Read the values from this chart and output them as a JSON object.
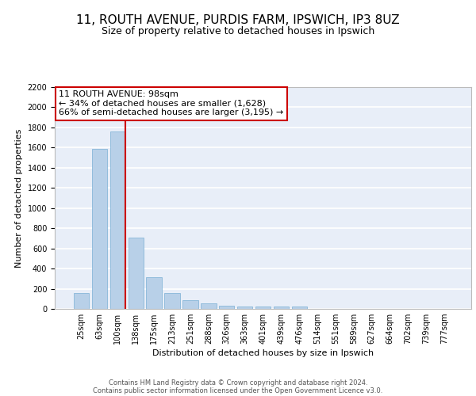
{
  "title1": "11, ROUTH AVENUE, PURDIS FARM, IPSWICH, IP3 8UZ",
  "title2": "Size of property relative to detached houses in Ipswich",
  "xlabel": "Distribution of detached houses by size in Ipswich",
  "ylabel": "Number of detached properties",
  "categories": [
    "25sqm",
    "63sqm",
    "100sqm",
    "138sqm",
    "175sqm",
    "213sqm",
    "251sqm",
    "288sqm",
    "326sqm",
    "363sqm",
    "401sqm",
    "439sqm",
    "476sqm",
    "514sqm",
    "551sqm",
    "589sqm",
    "627sqm",
    "664sqm",
    "702sqm",
    "739sqm",
    "777sqm"
  ],
  "values": [
    160,
    1590,
    1760,
    710,
    315,
    160,
    85,
    55,
    35,
    25,
    20,
    20,
    20,
    0,
    0,
    0,
    0,
    0,
    0,
    0,
    0
  ],
  "bar_color": "#b8d0e8",
  "bar_edge_color": "#7aafd4",
  "vline_color": "#cc0000",
  "annotation_text": "11 ROUTH AVENUE: 98sqm\n← 34% of detached houses are smaller (1,628)\n66% of semi-detached houses are larger (3,195) →",
  "annotation_box_color": "#cc0000",
  "ylim": [
    0,
    2200
  ],
  "yticks": [
    0,
    200,
    400,
    600,
    800,
    1000,
    1200,
    1400,
    1600,
    1800,
    2000,
    2200
  ],
  "footer_line1": "Contains HM Land Registry data © Crown copyright and database right 2024.",
  "footer_line2": "Contains public sector information licensed under the Open Government Licence v3.0.",
  "bg_color": "#e8eef8",
  "grid_color": "#ffffff",
  "title1_fontsize": 11,
  "title2_fontsize": 9,
  "xlabel_fontsize": 8,
  "ylabel_fontsize": 8,
  "tick_fontsize": 7,
  "footer_fontsize": 6,
  "ann_fontsize": 8
}
